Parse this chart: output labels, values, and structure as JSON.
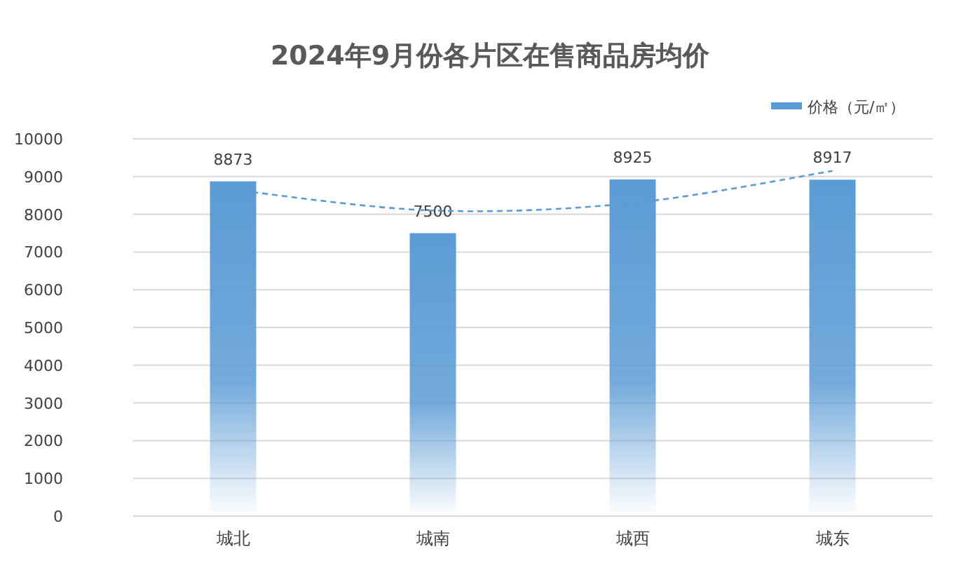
{
  "chart_data": {
    "type": "bar",
    "title": "2024年9月份各片区在售商品房均价",
    "categories": [
      "城北",
      "城南",
      "城西",
      "城东"
    ],
    "series": [
      {
        "name": "价格（元/㎡）",
        "color": "#5b9bd5",
        "values": [
          8873,
          7500,
          8925,
          8917
        ],
        "value_labels": [
          "8873",
          "7500",
          "8925",
          "8917"
        ]
      },
      {
        "type": "line",
        "x": [
          "城北",
          "城南",
          "城西",
          "城东"
        ],
        "color": "#5b9bd5",
        "line_style": "dashed",
        "values": [
          8650,
          8100,
          8300,
          9150
        ]
      }
    ],
    "ylim": [
      0,
      10000
    ],
    "yticks": [
      0,
      1000,
      2000,
      3000,
      4000,
      5000,
      6000,
      7000,
      8000,
      9000,
      10000
    ],
    "grid": "y",
    "legend": "top right"
  }
}
